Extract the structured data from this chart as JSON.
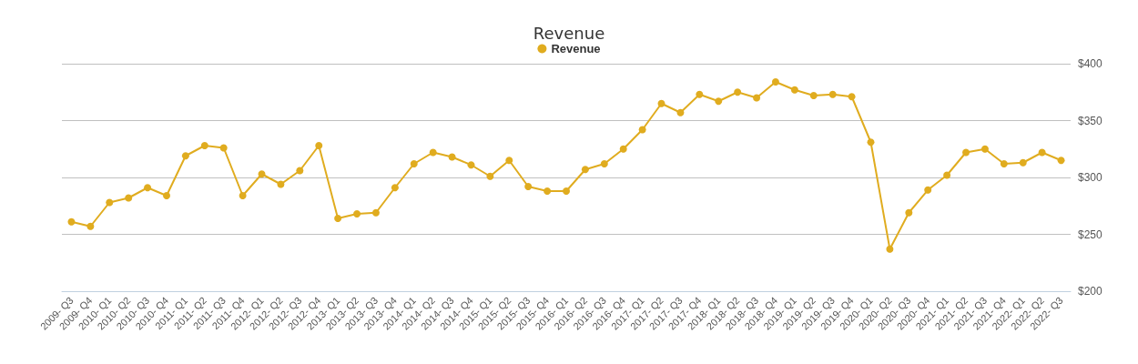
{
  "chart_data": {
    "type": "line",
    "title": "Revenue",
    "categories": [
      "2009- Q3",
      "2009- Q4",
      "2010- Q1",
      "2010- Q2",
      "2010- Q3",
      "2010- Q4",
      "2011- Q1",
      "2011- Q2",
      "2011- Q3",
      "2011- Q4",
      "2012- Q1",
      "2012- Q2",
      "2012- Q3",
      "2012- Q4",
      "2013- Q1",
      "2013- Q2",
      "2013- Q3",
      "2013- Q4",
      "2014- Q1",
      "2014- Q2",
      "2014- Q3",
      "2014- Q4",
      "2015- Q1",
      "2015- Q2",
      "2015- Q3",
      "2015- Q4",
      "2016- Q1",
      "2016- Q2",
      "2016- Q3",
      "2016- Q4",
      "2017- Q1",
      "2017- Q2",
      "2017- Q3",
      "2017- Q4",
      "2018- Q1",
      "2018- Q2",
      "2018- Q3",
      "2018- Q4",
      "2019- Q1",
      "2019- Q2",
      "2019- Q3",
      "2019- Q4",
      "2020- Q1",
      "2020- Q2",
      "2020- Q3",
      "2020- Q4",
      "2021- Q1",
      "2021- Q2",
      "2021- Q3",
      "2021- Q4",
      "2022- Q1",
      "2022- Q2",
      "2022- Q3"
    ],
    "series": [
      {
        "name": "Revenue",
        "color": "#e0ac1f",
        "values": [
          261,
          257,
          278,
          282,
          291,
          284,
          319,
          328,
          326,
          284,
          303,
          294,
          306,
          328,
          264,
          268,
          269,
          291,
          312,
          322,
          318,
          311,
          301,
          315,
          292,
          288,
          288,
          307,
          312,
          325,
          342,
          365,
          357,
          373,
          367,
          375,
          370,
          384,
          377,
          372,
          373,
          371,
          331,
          237,
          269,
          289,
          302,
          322,
          325,
          312,
          313,
          322,
          315
        ]
      }
    ],
    "ylim": [
      200,
      400
    ],
    "yticks": [
      {
        "value": 200,
        "label": "$200"
      },
      {
        "value": 250,
        "label": "$250"
      },
      {
        "value": 300,
        "label": "$300"
      },
      {
        "value": 350,
        "label": "$350"
      },
      {
        "value": 400,
        "label": "$400"
      }
    ],
    "grid": "y",
    "legend": "top",
    "marker": "circle",
    "line_style": "solid"
  }
}
